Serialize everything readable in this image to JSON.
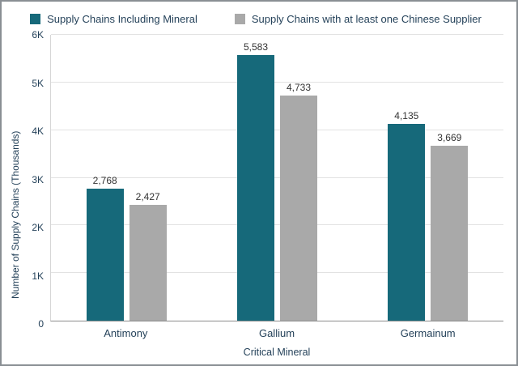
{
  "legend": {
    "position": "top-center"
  },
  "chart_data": {
    "type": "bar",
    "title": "",
    "categories": [
      "Antimony",
      "Gallium",
      "Germainum"
    ],
    "series": [
      {
        "name": "Supply Chains Including Mineral",
        "color": "#16697a",
        "values": [
          2768,
          5583,
          4135
        ],
        "labels": [
          "2,768",
          "5,583",
          "4,135"
        ]
      },
      {
        "name": "Supply Chains with at least one Chinese Supplier",
        "color": "#a9a9a9",
        "values": [
          2427,
          4733,
          3669
        ],
        "labels": [
          "2,427",
          "4,733",
          "3,669"
        ]
      }
    ],
    "xlabel": "Critical Mineral",
    "ylabel": "Number of Supply Chains (Thousands)",
    "ylim": [
      0,
      6000
    ],
    "grid": "horizontal",
    "yticks": [
      {
        "value": 0,
        "label": "0"
      },
      {
        "value": 1000,
        "label": "1K"
      },
      {
        "value": 2000,
        "label": "2K"
      },
      {
        "value": 3000,
        "label": "3K"
      },
      {
        "value": 4000,
        "label": "4K"
      },
      {
        "value": 5000,
        "label": "5K"
      },
      {
        "value": 6000,
        "label": "6K"
      }
    ]
  }
}
